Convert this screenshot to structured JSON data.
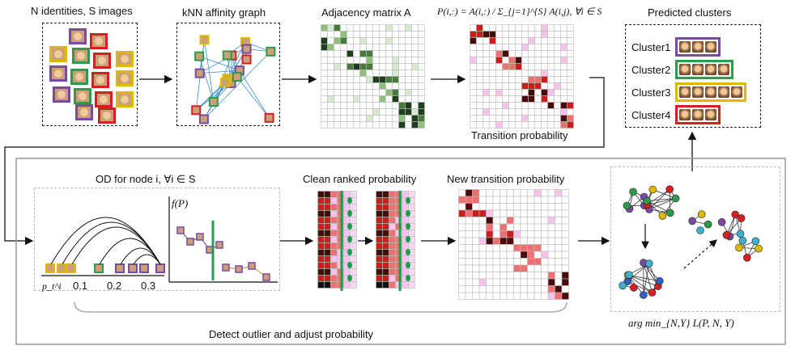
{
  "labels": {
    "identities": "N identities, S images",
    "knn": "kNN affinity graph",
    "adjacency": "Adjacency matrix A",
    "transition_formula": "P(i,:) = A(i,:) / Σ_{j=1}^{S} A(i,j), ∀i ∈ S",
    "transition": "Transition probability",
    "predicted": "Predicted clusters",
    "od": "OD for node i, ∀i ∈ S",
    "fP": "f(P)",
    "clean": "Clean ranked probability",
    "new_transition": "New transition probability",
    "detect": "Detect outlier and adjust probability",
    "argmin": "arg min_{N,Y} L(P, N, Y)",
    "tick_p": "p_t^i",
    "tick_1": "0.1",
    "tick_2": "0.2",
    "tick_3": "0.3"
  },
  "clusters": [
    {
      "label": "Cluster1",
      "color": "#7a4aa0",
      "count": 3
    },
    {
      "label": "Cluster2",
      "color": "#2e9a4a",
      "count": 4
    },
    {
      "label": "Cluster3",
      "color": "#e0b800",
      "count": 5
    },
    {
      "label": "Cluster4",
      "color": "#d62020",
      "count": 3
    }
  ],
  "colors": {
    "purple": "#7a4aa0",
    "green": "#2e9a4a",
    "yellow": "#e0b800",
    "red": "#d62020",
    "edge": "#3b8ec9"
  }
}
